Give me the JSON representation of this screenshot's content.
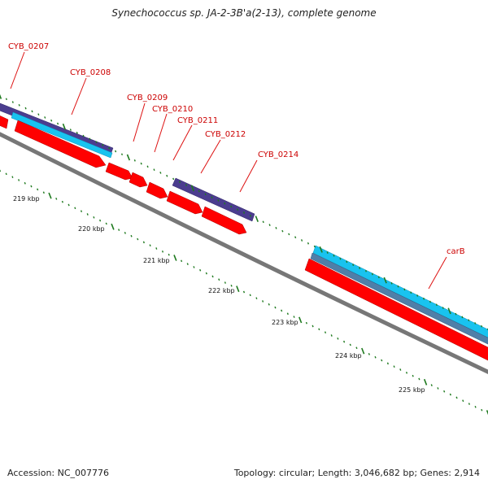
{
  "title": "Synechococcus sp. JA-2-3B'a(2-13), complete genome",
  "footer": {
    "accession": "Accession: NC_007776",
    "summary": "Topology: circular; Length: 3,046,682 bp; Genes: 2,914"
  },
  "colors": {
    "cds_forward": "#ff0000",
    "cds_reverse_purple": "#4b3d8f",
    "cyan_track": "#19c3ef",
    "slate_track": "#4f7fa8",
    "backbone": "#888888",
    "tick": "#1f7a1f",
    "gene_label": "#cc0000"
  },
  "gene_labels": [
    {
      "id": "l0207",
      "text": "CYB_0207"
    },
    {
      "id": "l0208",
      "text": "CYB_0208"
    },
    {
      "id": "l0209",
      "text": "CYB_0209"
    },
    {
      "id": "l0210",
      "text": "CYB_0210"
    },
    {
      "id": "l0211",
      "text": "CYB_0211"
    },
    {
      "id": "l0212",
      "text": "CYB_0212"
    },
    {
      "id": "l0214",
      "text": "CYB_0214"
    },
    {
      "id": "lcarB",
      "text": "carB"
    }
  ],
  "scale_labels": [
    "219 kbp",
    "220 kbp",
    "221 kbp",
    "222 kbp",
    "223 kbp",
    "224 kbp",
    "225 kbp"
  ]
}
